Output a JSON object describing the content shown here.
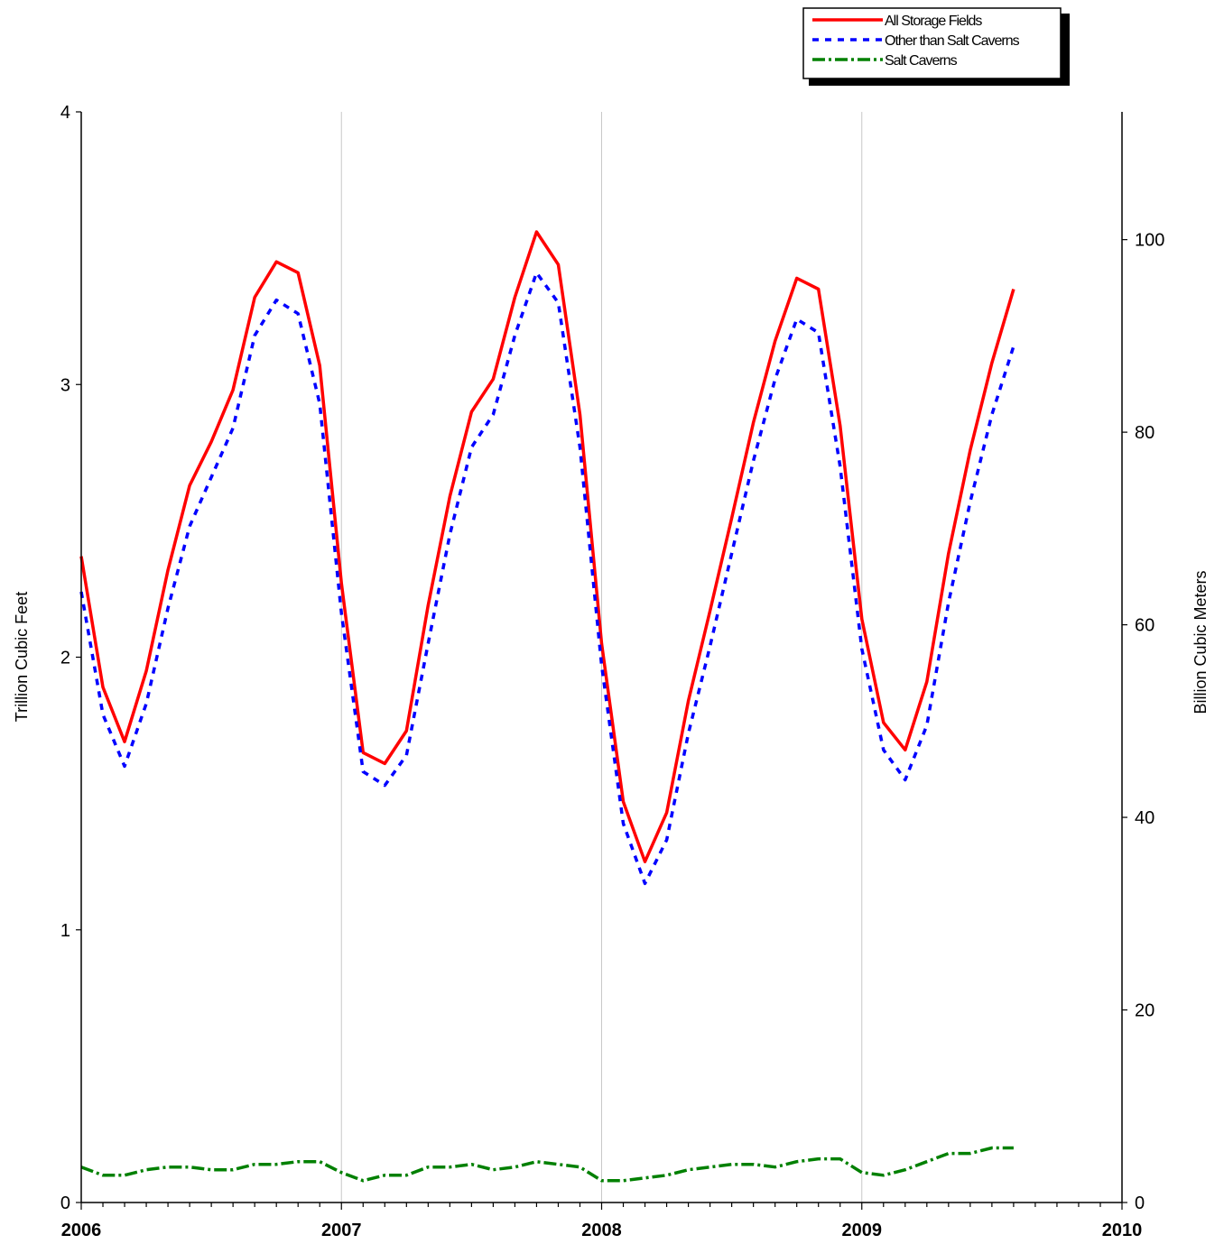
{
  "chart_data": {
    "type": "line",
    "ylabel_left": "Trillion Cubic Feet",
    "ylabel_right": "Billion Cubic Meters",
    "xlim": [
      2006,
      2010
    ],
    "ylim_left": [
      0,
      4
    ],
    "ylim_right": [
      0,
      113.27
    ],
    "x_ticks": [
      "2006",
      "2007",
      "2008",
      "2009",
      "2010"
    ],
    "y_ticks_left": [
      "0",
      "1",
      "2",
      "3",
      "4"
    ],
    "y_ticks_right": [
      "0",
      "20",
      "40",
      "60",
      "80",
      "100"
    ],
    "grid": "vertical lines at year boundaries",
    "legend": "top-right, outside plot area",
    "x": [
      "2006-01",
      "2006-02",
      "2006-03",
      "2006-04",
      "2006-05",
      "2006-06",
      "2006-07",
      "2006-08",
      "2006-09",
      "2006-10",
      "2006-11",
      "2006-12",
      "2007-01",
      "2007-02",
      "2007-03",
      "2007-04",
      "2007-05",
      "2007-06",
      "2007-07",
      "2007-08",
      "2007-09",
      "2007-10",
      "2007-11",
      "2007-12",
      "2008-01",
      "2008-02",
      "2008-03",
      "2008-04",
      "2008-05",
      "2008-06",
      "2008-07",
      "2008-08",
      "2008-09",
      "2008-10",
      "2008-11",
      "2008-12",
      "2009-01",
      "2009-02",
      "2009-03",
      "2009-04",
      "2009-05",
      "2009-06",
      "2009-07",
      "2009-08"
    ],
    "series": [
      {
        "name": "All Storage Fields",
        "color": "#ff0000",
        "style": "solid",
        "values": [
          2.37,
          1.89,
          1.69,
          1.95,
          2.32,
          2.63,
          2.79,
          2.98,
          3.32,
          3.45,
          3.41,
          3.07,
          2.27,
          1.65,
          1.61,
          1.73,
          2.19,
          2.59,
          2.9,
          3.02,
          3.32,
          3.56,
          3.44,
          2.89,
          2.05,
          1.47,
          1.25,
          1.43,
          1.84,
          2.17,
          2.51,
          2.86,
          3.16,
          3.39,
          3.35,
          2.85,
          2.14,
          1.76,
          1.66,
          1.91,
          2.38,
          2.76,
          3.08,
          3.35
        ]
      },
      {
        "name": "Other than Salt Caverns",
        "color": "#0000ff",
        "style": "dotted",
        "values": [
          2.24,
          1.79,
          1.6,
          1.83,
          2.18,
          2.48,
          2.66,
          2.84,
          3.18,
          3.31,
          3.26,
          2.93,
          2.16,
          1.58,
          1.53,
          1.64,
          2.05,
          2.45,
          2.77,
          2.89,
          3.18,
          3.41,
          3.3,
          2.77,
          1.97,
          1.39,
          1.17,
          1.33,
          1.72,
          2.04,
          2.38,
          2.72,
          3.02,
          3.24,
          3.19,
          2.7,
          2.03,
          1.66,
          1.55,
          1.75,
          2.2,
          2.57,
          2.89,
          3.14
        ]
      },
      {
        "name": "Salt Caverns",
        "color": "#008000",
        "style": "dash-dot",
        "values": [
          0.13,
          0.1,
          0.1,
          0.12,
          0.13,
          0.13,
          0.12,
          0.12,
          0.14,
          0.14,
          0.15,
          0.15,
          0.11,
          0.08,
          0.1,
          0.1,
          0.13,
          0.13,
          0.14,
          0.12,
          0.13,
          0.15,
          0.14,
          0.13,
          0.08,
          0.08,
          0.09,
          0.1,
          0.12,
          0.13,
          0.14,
          0.14,
          0.13,
          0.15,
          0.16,
          0.16,
          0.11,
          0.1,
          0.12,
          0.15,
          0.18,
          0.18,
          0.2,
          0.2
        ]
      }
    ]
  }
}
